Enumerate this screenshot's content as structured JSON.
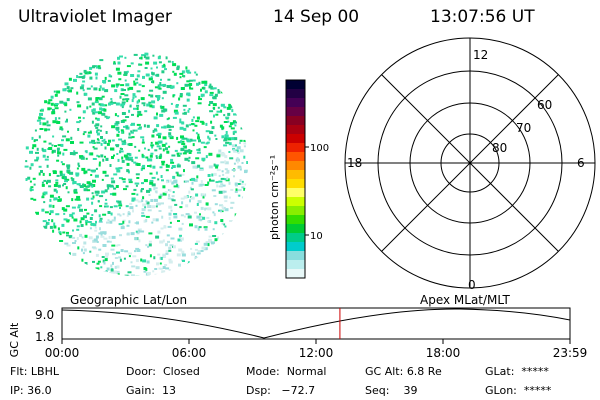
{
  "header": {
    "instrument": "Ultraviolet Imager",
    "date": "14 Sep 00",
    "time": "13:07:56 UT"
  },
  "colorbar": {
    "unit_label": "photon cm⁻²s⁻¹",
    "ticks": [
      "100",
      "10"
    ],
    "colors": [
      "#000033",
      "#220044",
      "#440055",
      "#660044",
      "#880022",
      "#aa0011",
      "#cc0000",
      "#ee2200",
      "#ff5500",
      "#ff8800",
      "#ffbb00",
      "#ffdd00",
      "#ffff66",
      "#ccff00",
      "#88ee00",
      "#33dd00",
      "#00cc33",
      "#00cc88",
      "#00cccc",
      "#88dddd",
      "#bbeeee",
      "#e8f8f8"
    ]
  },
  "polar_plot": {
    "mlt_labels": [
      "12",
      "18",
      "6",
      "0"
    ],
    "lat_labels": [
      "60",
      "70",
      "80"
    ]
  },
  "altitude_panel": {
    "left_title": "Geographic Lat/Lon",
    "right_title": "Apex MLat/MLT",
    "y_axis_label": "GC Alt",
    "y_ticks": [
      "9.0",
      "1.8"
    ],
    "x_ticks": [
      "00:00",
      "06:00",
      "12:00",
      "18:00",
      "23:59"
    ],
    "current_time_hours": 13.13
  },
  "status": {
    "flt_label": "Flt:",
    "flt_value": "LBHL",
    "ip_label": "IP:",
    "ip_value": "36.0",
    "door_label": "Door:",
    "door_value": "Closed",
    "gain_label": "Gain:",
    "gain_value": "13",
    "mode_label": "Mode:",
    "mode_value": "Normal",
    "dsp_label": "Dsp:",
    "dsp_value": "−72.7",
    "gcalt_label": "GC Alt:",
    "gcalt_value": "6.8 Re",
    "seq_label": "Seq:",
    "seq_value": "39",
    "glat_label": "GLat:",
    "glat_value": "*****",
    "glon_label": "GLon:",
    "glon_value": "*****"
  }
}
